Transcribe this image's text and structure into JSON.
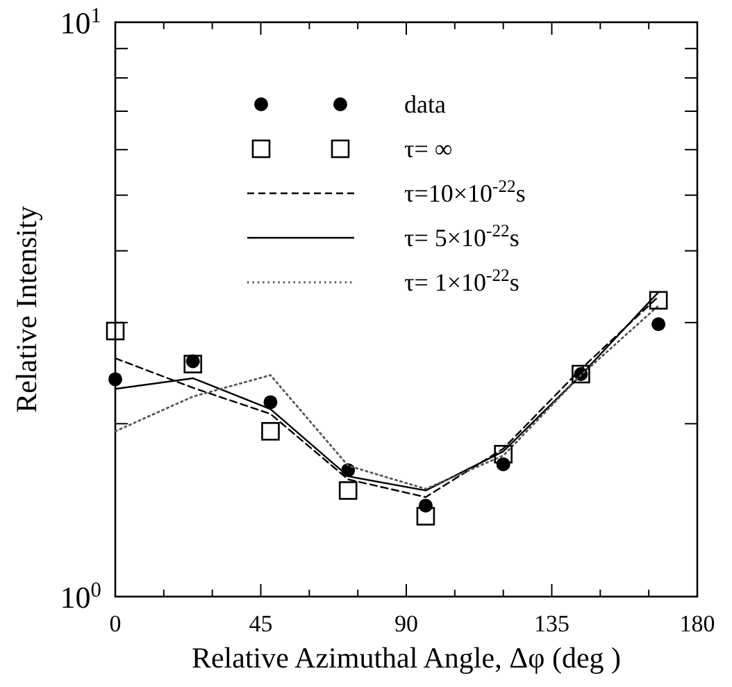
{
  "chart_data": {
    "type": "line",
    "xlabel": "Relative Azimuthal Angle, Δφ (deg )",
    "ylabel": "Relative Intensity",
    "x": [
      0,
      24,
      48,
      72,
      96,
      120,
      144,
      168
    ],
    "xlim": [
      0,
      180
    ],
    "xticks": [
      0,
      {
        "value": 15,
        "label": null
      },
      {
        "value": 30,
        "label": null
      },
      45,
      {
        "value": 60,
        "label": null
      },
      {
        "value": 75,
        "label": null
      },
      90,
      {
        "value": 105,
        "label": null
      },
      {
        "value": 120,
        "label": null
      },
      135,
      {
        "value": 150,
        "label": null
      },
      {
        "value": 165,
        "label": null
      },
      180
    ],
    "ylim": [
      1,
      10
    ],
    "log": true,
    "yticks": [
      {
        "value": 1,
        "label": "10$^{0}$"
      },
      {
        "value": 2,
        "label": null
      },
      {
        "value": 3,
        "label": null
      },
      {
        "value": 4,
        "label": null
      },
      {
        "value": 5,
        "label": null
      },
      {
        "value": 6,
        "label": null
      },
      {
        "value": 7,
        "label": null
      },
      {
        "value": 8,
        "label": null
      },
      {
        "value": 9,
        "label": null
      },
      {
        "value": 10,
        "label": "10$^{1}$"
      }
    ],
    "grid": false,
    "legend": "top right",
    "series": [
      {
        "name": "data",
        "type": "scatter",
        "marker": "circle",
        "color": "#000000",
        "values": [
          2.39,
          2.57,
          2.18,
          1.66,
          1.44,
          1.7,
          2.44,
          2.98
        ]
      },
      {
        "name": "τ= ∞",
        "type": "scatter",
        "marker": "square",
        "color": "#000000",
        "values": [
          2.9,
          2.54,
          1.94,
          1.53,
          1.38,
          1.77,
          2.44,
          3.28
        ]
      },
      {
        "name": "τ=10×10$^{-22}$s",
        "line_style": "dashed",
        "color": "#000000",
        "values": [
          2.6,
          2.31,
          2.08,
          1.6,
          1.49,
          1.81,
          2.49,
          3.33
        ]
      },
      {
        "name": "τ= 5×10$^{-22}$s",
        "line_style": "solid",
        "color": "#000000",
        "values": [
          2.3,
          2.4,
          2.12,
          1.62,
          1.53,
          1.79,
          2.43,
          3.39
        ]
      },
      {
        "name": "τ= 1×10$^{-22}$s",
        "line_style": "dotted",
        "color": "#555555",
        "values": [
          1.94,
          2.23,
          2.43,
          1.69,
          1.54,
          1.76,
          2.43,
          3.21
        ]
      }
    ]
  }
}
